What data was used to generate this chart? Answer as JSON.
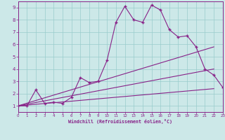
{
  "xlabel": "Windchill (Refroidissement éolien,°C)",
  "bg_color": "#cce8e8",
  "line_color": "#882288",
  "grid_color": "#99cccc",
  "xlim": [
    0,
    23
  ],
  "ylim": [
    0.5,
    9.5
  ],
  "xticks": [
    0,
    1,
    2,
    3,
    4,
    5,
    6,
    7,
    8,
    9,
    10,
    11,
    12,
    13,
    14,
    15,
    16,
    17,
    18,
    19,
    20,
    21,
    22,
    23
  ],
  "yticks": [
    1,
    2,
    3,
    4,
    5,
    6,
    7,
    8,
    9
  ],
  "line1_x": [
    0,
    1,
    2,
    3,
    4,
    5,
    6,
    7,
    8,
    9,
    10,
    11,
    12,
    13,
    14,
    15,
    16,
    17,
    18,
    19,
    20,
    21,
    22,
    23
  ],
  "line1_y": [
    1,
    1,
    2.3,
    1.2,
    1.3,
    1.2,
    1.7,
    3.3,
    2.9,
    3.0,
    4.7,
    7.8,
    9.1,
    8.0,
    7.8,
    9.2,
    8.8,
    7.2,
    6.6,
    6.7,
    5.8,
    4.0,
    3.5,
    2.5
  ],
  "line2_x": [
    0,
    22
  ],
  "line2_y": [
    1,
    5.8
  ],
  "line3_x": [
    0,
    22
  ],
  "line3_y": [
    1,
    4.0
  ],
  "line4_x": [
    0,
    22
  ],
  "line4_y": [
    1,
    2.4
  ]
}
